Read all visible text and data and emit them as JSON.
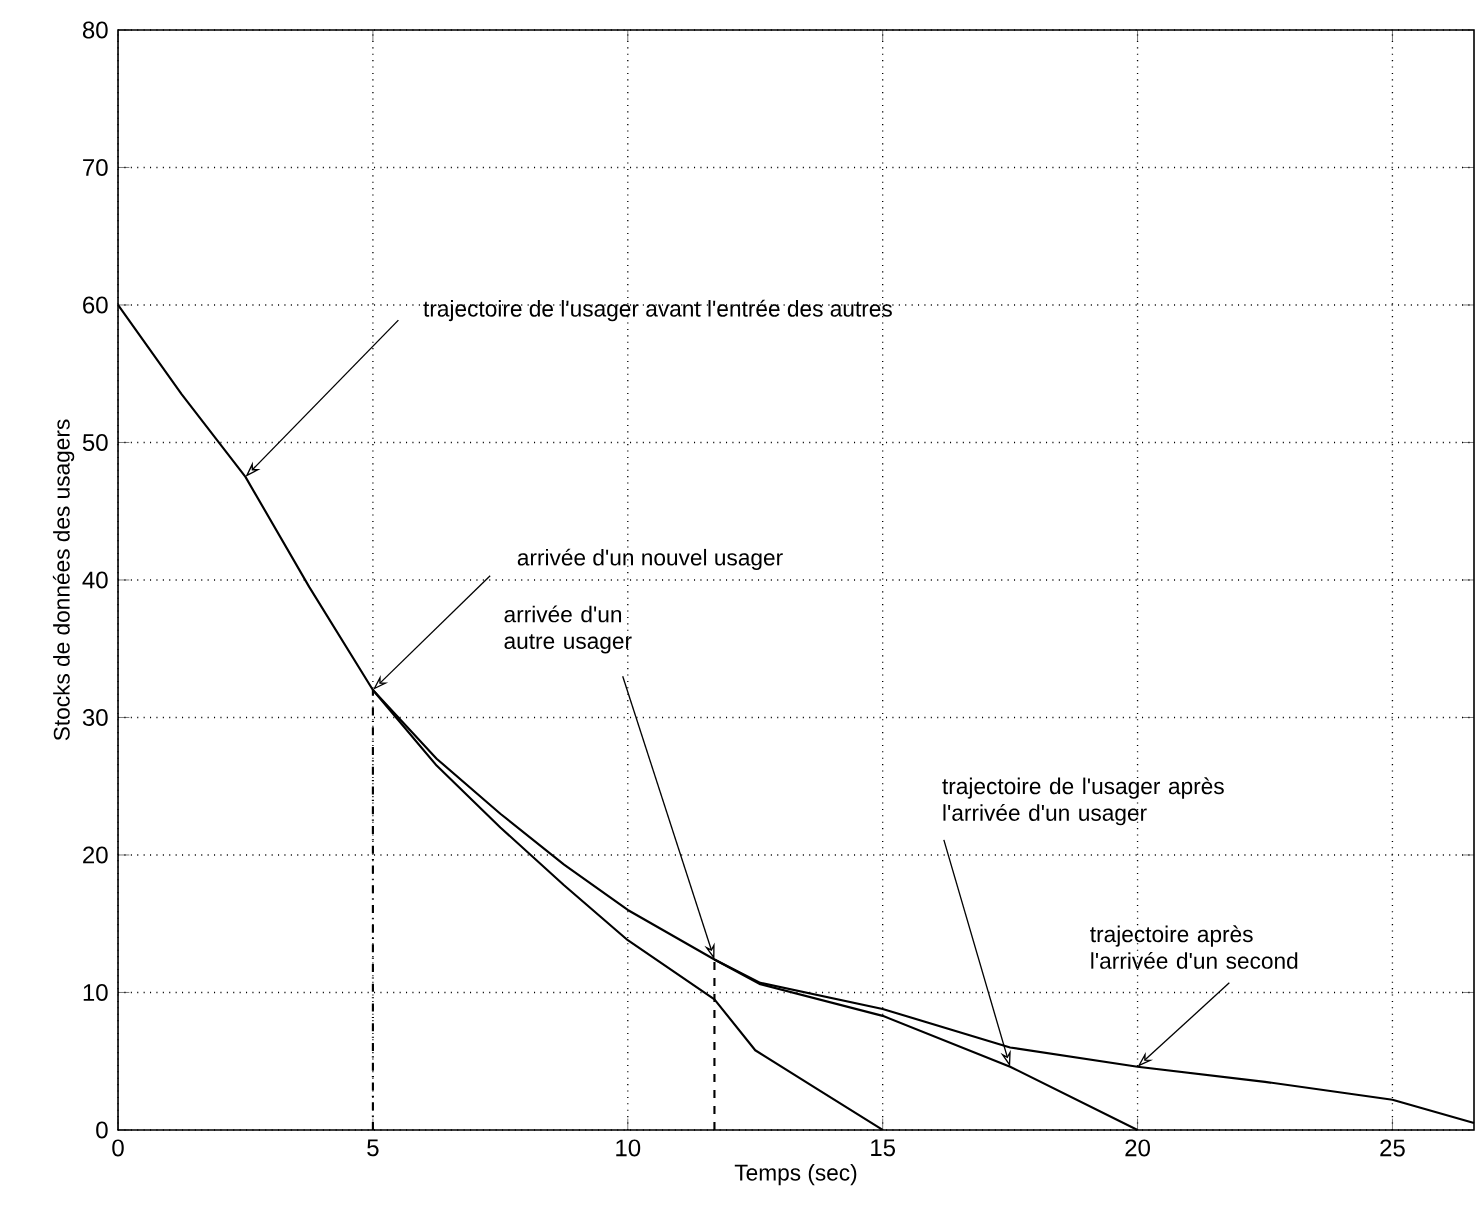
{
  "chart_data": {
    "type": "line",
    "xlabel": "Temps (sec)",
    "ylabel": "Stocks de données des usagers",
    "xlim": [
      0,
      26.6
    ],
    "ylim": [
      0,
      80
    ],
    "xticks": [
      0,
      5,
      10,
      15,
      20,
      25
    ],
    "yticks": [
      0,
      10,
      20,
      30,
      40,
      50,
      60,
      70,
      80
    ],
    "grid": true,
    "marker": "none",
    "line_style": "solid",
    "series": [
      {
        "color": "#000000",
        "x": [
          0,
          1.25,
          2.5,
          3.75,
          5,
          6.25,
          7.5,
          8.75,
          10,
          11.7,
          12.5,
          13.75,
          15
        ],
        "values": [
          60,
          53.5,
          47.5,
          39.5,
          32,
          26.5,
          22,
          17.8,
          13.8,
          9.5,
          5.8,
          2.9,
          0
        ]
      },
      {
        "color": "#000000",
        "x": [
          5,
          6.25,
          7.5,
          8.75,
          10,
          11.7,
          12.6,
          15,
          17.5,
          20
        ],
        "values": [
          32,
          27,
          23,
          19.3,
          16,
          12.4,
          10.6,
          8.3,
          4.6,
          0
        ]
      },
      {
        "color": "#000000",
        "x": [
          11.7,
          12.6,
          15,
          17.5,
          20,
          22.5,
          25,
          26.6
        ],
        "values": [
          12.4,
          10.7,
          8.8,
          6.0,
          4.6,
          3.5,
          2.2,
          0.5
        ]
      },
      {
        "color": "#000000",
        "line_style": "dashdotted",
        "x": [
          5,
          5
        ],
        "values": [
          0,
          32
        ]
      },
      {
        "color": "#000000",
        "line_style": "dashed",
        "x": [
          11.7,
          11.7
        ],
        "values": [
          0,
          12.4
        ]
      }
    ],
    "annotations": [
      {
        "text": "trajectoire de l'usager avant l'entrée des autres",
        "x": 2.5,
        "y": 47.5
      },
      {
        "text": "arrivée d'un nouvel usager",
        "x": 5,
        "y": 32
      },
      {
        "text": "arrivée d'un autre usager",
        "x": 11.7,
        "y": 12.4
      },
      {
        "text": "trajectoire de l'usager après l'arrivée d'un usager",
        "x": 17.5,
        "y": 4.6
      },
      {
        "text": "trajectoire après l'arrivée d'un second",
        "x": 20,
        "y": 4.6
      }
    ]
  }
}
